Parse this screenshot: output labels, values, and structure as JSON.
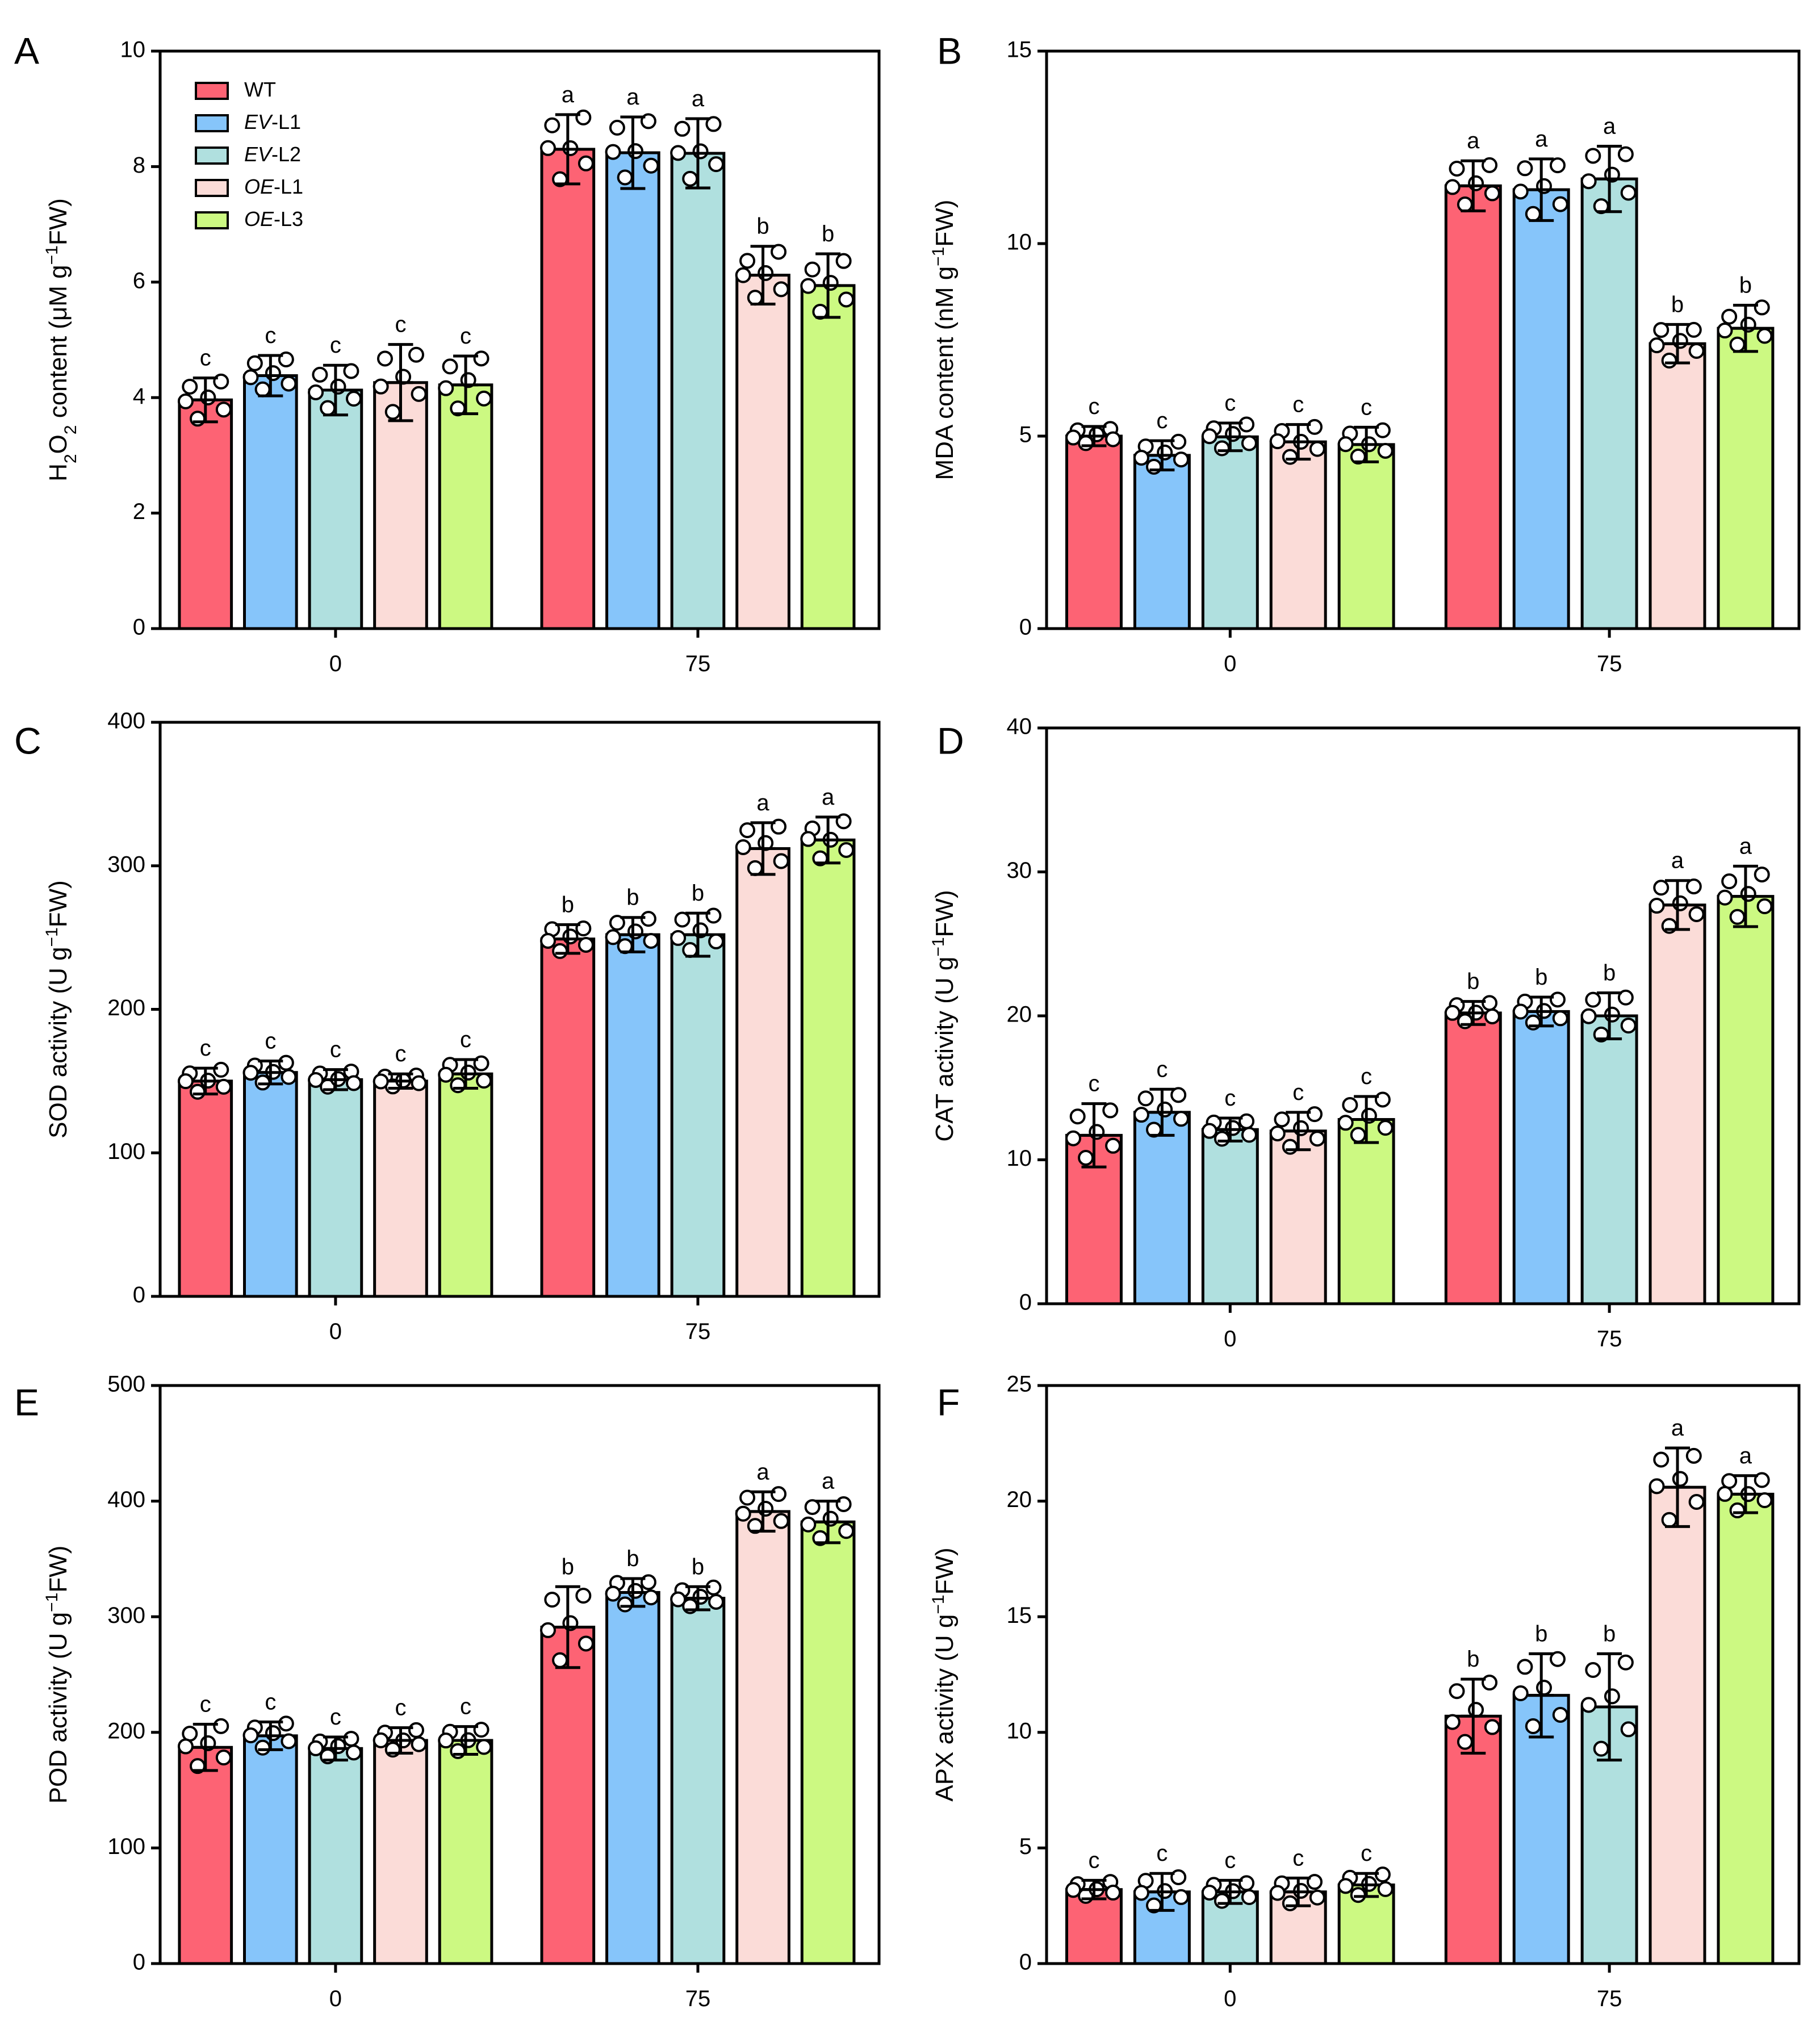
{
  "chart_data": [
    {
      "panel": "A",
      "type": "bar",
      "categories": [
        "0",
        "75"
      ],
      "ylabel": "H2O2 content (μM g−1FW)",
      "ylabel_parts": [
        {
          "t": "H",
          "s": "n"
        },
        {
          "t": "2",
          "s": "sub"
        },
        {
          "t": "O",
          "s": "n"
        },
        {
          "t": "2",
          "s": "sub"
        },
        {
          "t": " content (μM g",
          "s": "n"
        },
        {
          "t": "−1",
          "s": "sup"
        },
        {
          "t": "FW)",
          "s": "n"
        }
      ],
      "ylim": [
        0,
        10
      ],
      "yticks": [
        "0",
        "2",
        "4",
        "6",
        "8",
        "10"
      ],
      "yticks_values": [
        0,
        2,
        4,
        6,
        8,
        10
      ],
      "series": [
        {
          "name": "WT",
          "values": [
            3.96,
            8.3
          ],
          "errors": [
            0.38,
            0.6
          ],
          "letters": [
            "c",
            "a"
          ]
        },
        {
          "name": "EV-L1",
          "values": [
            4.38,
            8.24
          ],
          "errors": [
            0.35,
            0.62
          ],
          "letters": [
            "c",
            "a"
          ]
        },
        {
          "name": "EV-L2",
          "values": [
            4.13,
            8.23
          ],
          "errors": [
            0.43,
            0.6
          ],
          "letters": [
            "c",
            "a"
          ]
        },
        {
          "name": "OE-L1",
          "values": [
            4.26,
            6.12
          ],
          "errors": [
            0.66,
            0.5
          ],
          "letters": [
            "c",
            "b"
          ]
        },
        {
          "name": "OE-L3",
          "values": [
            4.22,
            5.94
          ],
          "errors": [
            0.5,
            0.55
          ],
          "letters": [
            "c",
            "b"
          ]
        }
      ],
      "legend": [
        {
          "parts": [
            {
              "t": "WT",
              "s": "n"
            }
          ]
        },
        {
          "parts": [
            {
              "t": "EV",
              "s": "i"
            },
            {
              "t": "-L1",
              "s": "n"
            }
          ]
        },
        {
          "parts": [
            {
              "t": "EV",
              "s": "i"
            },
            {
              "t": "-L2",
              "s": "n"
            }
          ]
        },
        {
          "parts": [
            {
              "t": "OE",
              "s": "i"
            },
            {
              "t": "-L1",
              "s": "n"
            }
          ]
        },
        {
          "parts": [
            {
              "t": "OE",
              "s": "i"
            },
            {
              "t": "-L3",
              "s": "n"
            }
          ]
        }
      ],
      "legend_position": "top-left"
    },
    {
      "panel": "B",
      "type": "bar",
      "categories": [
        "0",
        "75"
      ],
      "ylabel": "MDA content (nM g−1FW)",
      "ylabel_parts": [
        {
          "t": "MDA content (nM g",
          "s": "n"
        },
        {
          "t": "−1",
          "s": "sup"
        },
        {
          "t": "FW)",
          "s": "n"
        }
      ],
      "ylim": [
        0,
        15
      ],
      "yticks": [
        "0",
        "5",
        "10",
        "15"
      ],
      "yticks_values": [
        0,
        5,
        10,
        15
      ],
      "series": [
        {
          "name": "WT",
          "values": [
            5.0,
            11.5
          ],
          "errors": [
            0.25,
            0.65
          ],
          "letters": [
            "c",
            "a"
          ]
        },
        {
          "name": "EV-L1",
          "values": [
            4.5,
            11.4
          ],
          "errors": [
            0.38,
            0.8
          ],
          "letters": [
            "c",
            "a"
          ]
        },
        {
          "name": "EV-L2",
          "values": [
            4.98,
            11.68
          ],
          "errors": [
            0.36,
            0.85
          ],
          "letters": [
            "c",
            "a"
          ]
        },
        {
          "name": "OE-L1",
          "values": [
            4.85,
            7.4
          ],
          "errors": [
            0.45,
            0.5
          ],
          "letters": [
            "c",
            "b"
          ]
        },
        {
          "name": "OE-L3",
          "values": [
            4.78,
            7.8
          ],
          "errors": [
            0.45,
            0.6
          ],
          "letters": [
            "c",
            "b"
          ]
        }
      ]
    },
    {
      "panel": "C",
      "type": "bar",
      "categories": [
        "0",
        "75"
      ],
      "ylabel": "SOD activity (U g−1FW)",
      "ylabel_parts": [
        {
          "t": "SOD activity  (U g",
          "s": "n"
        },
        {
          "t": "−1",
          "s": "sup"
        },
        {
          "t": "FW)",
          "s": "n"
        }
      ],
      "ylim": [
        0,
        400
      ],
      "yticks": [
        "0",
        "100",
        "200",
        "300",
        "400"
      ],
      "yticks_values": [
        0,
        100,
        200,
        300,
        400
      ],
      "series": [
        {
          "name": "WT",
          "values": [
            150,
            249
          ],
          "errors": [
            9,
            10
          ],
          "letters": [
            "c",
            "b"
          ]
        },
        {
          "name": "EV-L1",
          "values": [
            156,
            252
          ],
          "errors": [
            8,
            12
          ],
          "letters": [
            "c",
            "b"
          ]
        },
        {
          "name": "EV-L2",
          "values": [
            151,
            252
          ],
          "errors": [
            7,
            15
          ],
          "letters": [
            "c",
            "b"
          ]
        },
        {
          "name": "OE-L1",
          "values": [
            150,
            312
          ],
          "errors": [
            5,
            18
          ],
          "letters": [
            "c",
            "a"
          ]
        },
        {
          "name": "OE-L3",
          "values": [
            155,
            318
          ],
          "errors": [
            10,
            16
          ],
          "letters": [
            "c",
            "a"
          ]
        }
      ]
    },
    {
      "panel": "D",
      "type": "bar",
      "categories": [
        "0",
        "75"
      ],
      "ylabel": "CAT activity (U g−1FW)",
      "ylabel_parts": [
        {
          "t": "CAT activity  (U g",
          "s": "n"
        },
        {
          "t": "−1",
          "s": "sup"
        },
        {
          "t": "FW)",
          "s": "n"
        }
      ],
      "ylim": [
        0,
        40
      ],
      "yticks": [
        "0",
        "10",
        "20",
        "30",
        "40"
      ],
      "yticks_values": [
        0,
        10,
        20,
        30,
        40
      ],
      "series": [
        {
          "name": "WT",
          "values": [
            11.7,
            20.2
          ],
          "errors": [
            2.2,
            0.8
          ],
          "letters": [
            "c",
            "b"
          ]
        },
        {
          "name": "EV-L1",
          "values": [
            13.3,
            20.3
          ],
          "errors": [
            1.6,
            1.0
          ],
          "letters": [
            "c",
            "b"
          ]
        },
        {
          "name": "EV-L2",
          "values": [
            12.1,
            20.0
          ],
          "errors": [
            0.8,
            1.6
          ],
          "letters": [
            "c",
            "b"
          ]
        },
        {
          "name": "OE-L1",
          "values": [
            12.0,
            27.7
          ],
          "errors": [
            1.3,
            1.7
          ],
          "letters": [
            "c",
            "a"
          ]
        },
        {
          "name": "OE-L3",
          "values": [
            12.8,
            28.3
          ],
          "errors": [
            1.6,
            2.1
          ],
          "letters": [
            "c",
            "a"
          ]
        }
      ]
    },
    {
      "panel": "E",
      "type": "bar",
      "categories": [
        "0",
        "75"
      ],
      "ylabel": "POD activity (U g−1FW)",
      "ylabel_parts": [
        {
          "t": "POD activity  (U g",
          "s": "n"
        },
        {
          "t": "−1",
          "s": "sup"
        },
        {
          "t": "FW)",
          "s": "n"
        }
      ],
      "ylim": [
        0,
        500
      ],
      "yticks": [
        "0",
        "100",
        "200",
        "300",
        "400",
        "500"
      ],
      "yticks_values": [
        0,
        100,
        200,
        300,
        400,
        500
      ],
      "series": [
        {
          "name": "WT",
          "values": [
            187,
            291
          ],
          "errors": [
            20,
            35
          ],
          "letters": [
            "c",
            "b"
          ]
        },
        {
          "name": "EV-L1",
          "values": [
            197,
            321
          ],
          "errors": [
            12,
            12
          ],
          "letters": [
            "c",
            "b"
          ]
        },
        {
          "name": "EV-L2",
          "values": [
            186,
            316
          ],
          "errors": [
            10,
            10
          ],
          "letters": [
            "c",
            "b"
          ]
        },
        {
          "name": "OE-L1",
          "values": [
            193,
            391
          ],
          "errors": [
            11,
            17
          ],
          "letters": [
            "c",
            "a"
          ]
        },
        {
          "name": "OE-L3",
          "values": [
            193,
            382
          ],
          "errors": [
            12,
            18
          ],
          "letters": [
            "c",
            "a"
          ]
        }
      ]
    },
    {
      "panel": "F",
      "type": "bar",
      "categories": [
        "0",
        "75"
      ],
      "ylabel": "APX activity (U g−1FW)",
      "ylabel_parts": [
        {
          "t": "APX activity  (U g",
          "s": "n"
        },
        {
          "t": "−1",
          "s": "sup"
        },
        {
          "t": "FW)",
          "s": "n"
        }
      ],
      "ylim": [
        0,
        25
      ],
      "yticks": [
        "0",
        "5",
        "10",
        "15",
        "20",
        "25"
      ],
      "yticks_values": [
        0,
        5,
        10,
        15,
        20,
        25
      ],
      "series": [
        {
          "name": "WT",
          "values": [
            3.2,
            10.7
          ],
          "errors": [
            0.4,
            1.6
          ],
          "letters": [
            "c",
            "b"
          ]
        },
        {
          "name": "EV-L1",
          "values": [
            3.1,
            11.6
          ],
          "errors": [
            0.8,
            1.8
          ],
          "letters": [
            "c",
            "b"
          ]
        },
        {
          "name": "EV-L2",
          "values": [
            3.1,
            11.1
          ],
          "errors": [
            0.5,
            2.3
          ],
          "letters": [
            "c",
            "b"
          ]
        },
        {
          "name": "OE-L1",
          "values": [
            3.1,
            20.6
          ],
          "errors": [
            0.6,
            1.7
          ],
          "letters": [
            "c",
            "a"
          ]
        },
        {
          "name": "OE-L3",
          "values": [
            3.4,
            20.3
          ],
          "errors": [
            0.5,
            0.8
          ],
          "letters": [
            "c",
            "a"
          ]
        }
      ]
    }
  ],
  "colors": {
    "WT": "#fd6374",
    "EV-L1": "#86c5fa",
    "EV-L2": "#b0e0df",
    "OE-L1": "#fbdcd8",
    "OE-L3": "#ccf982"
  }
}
